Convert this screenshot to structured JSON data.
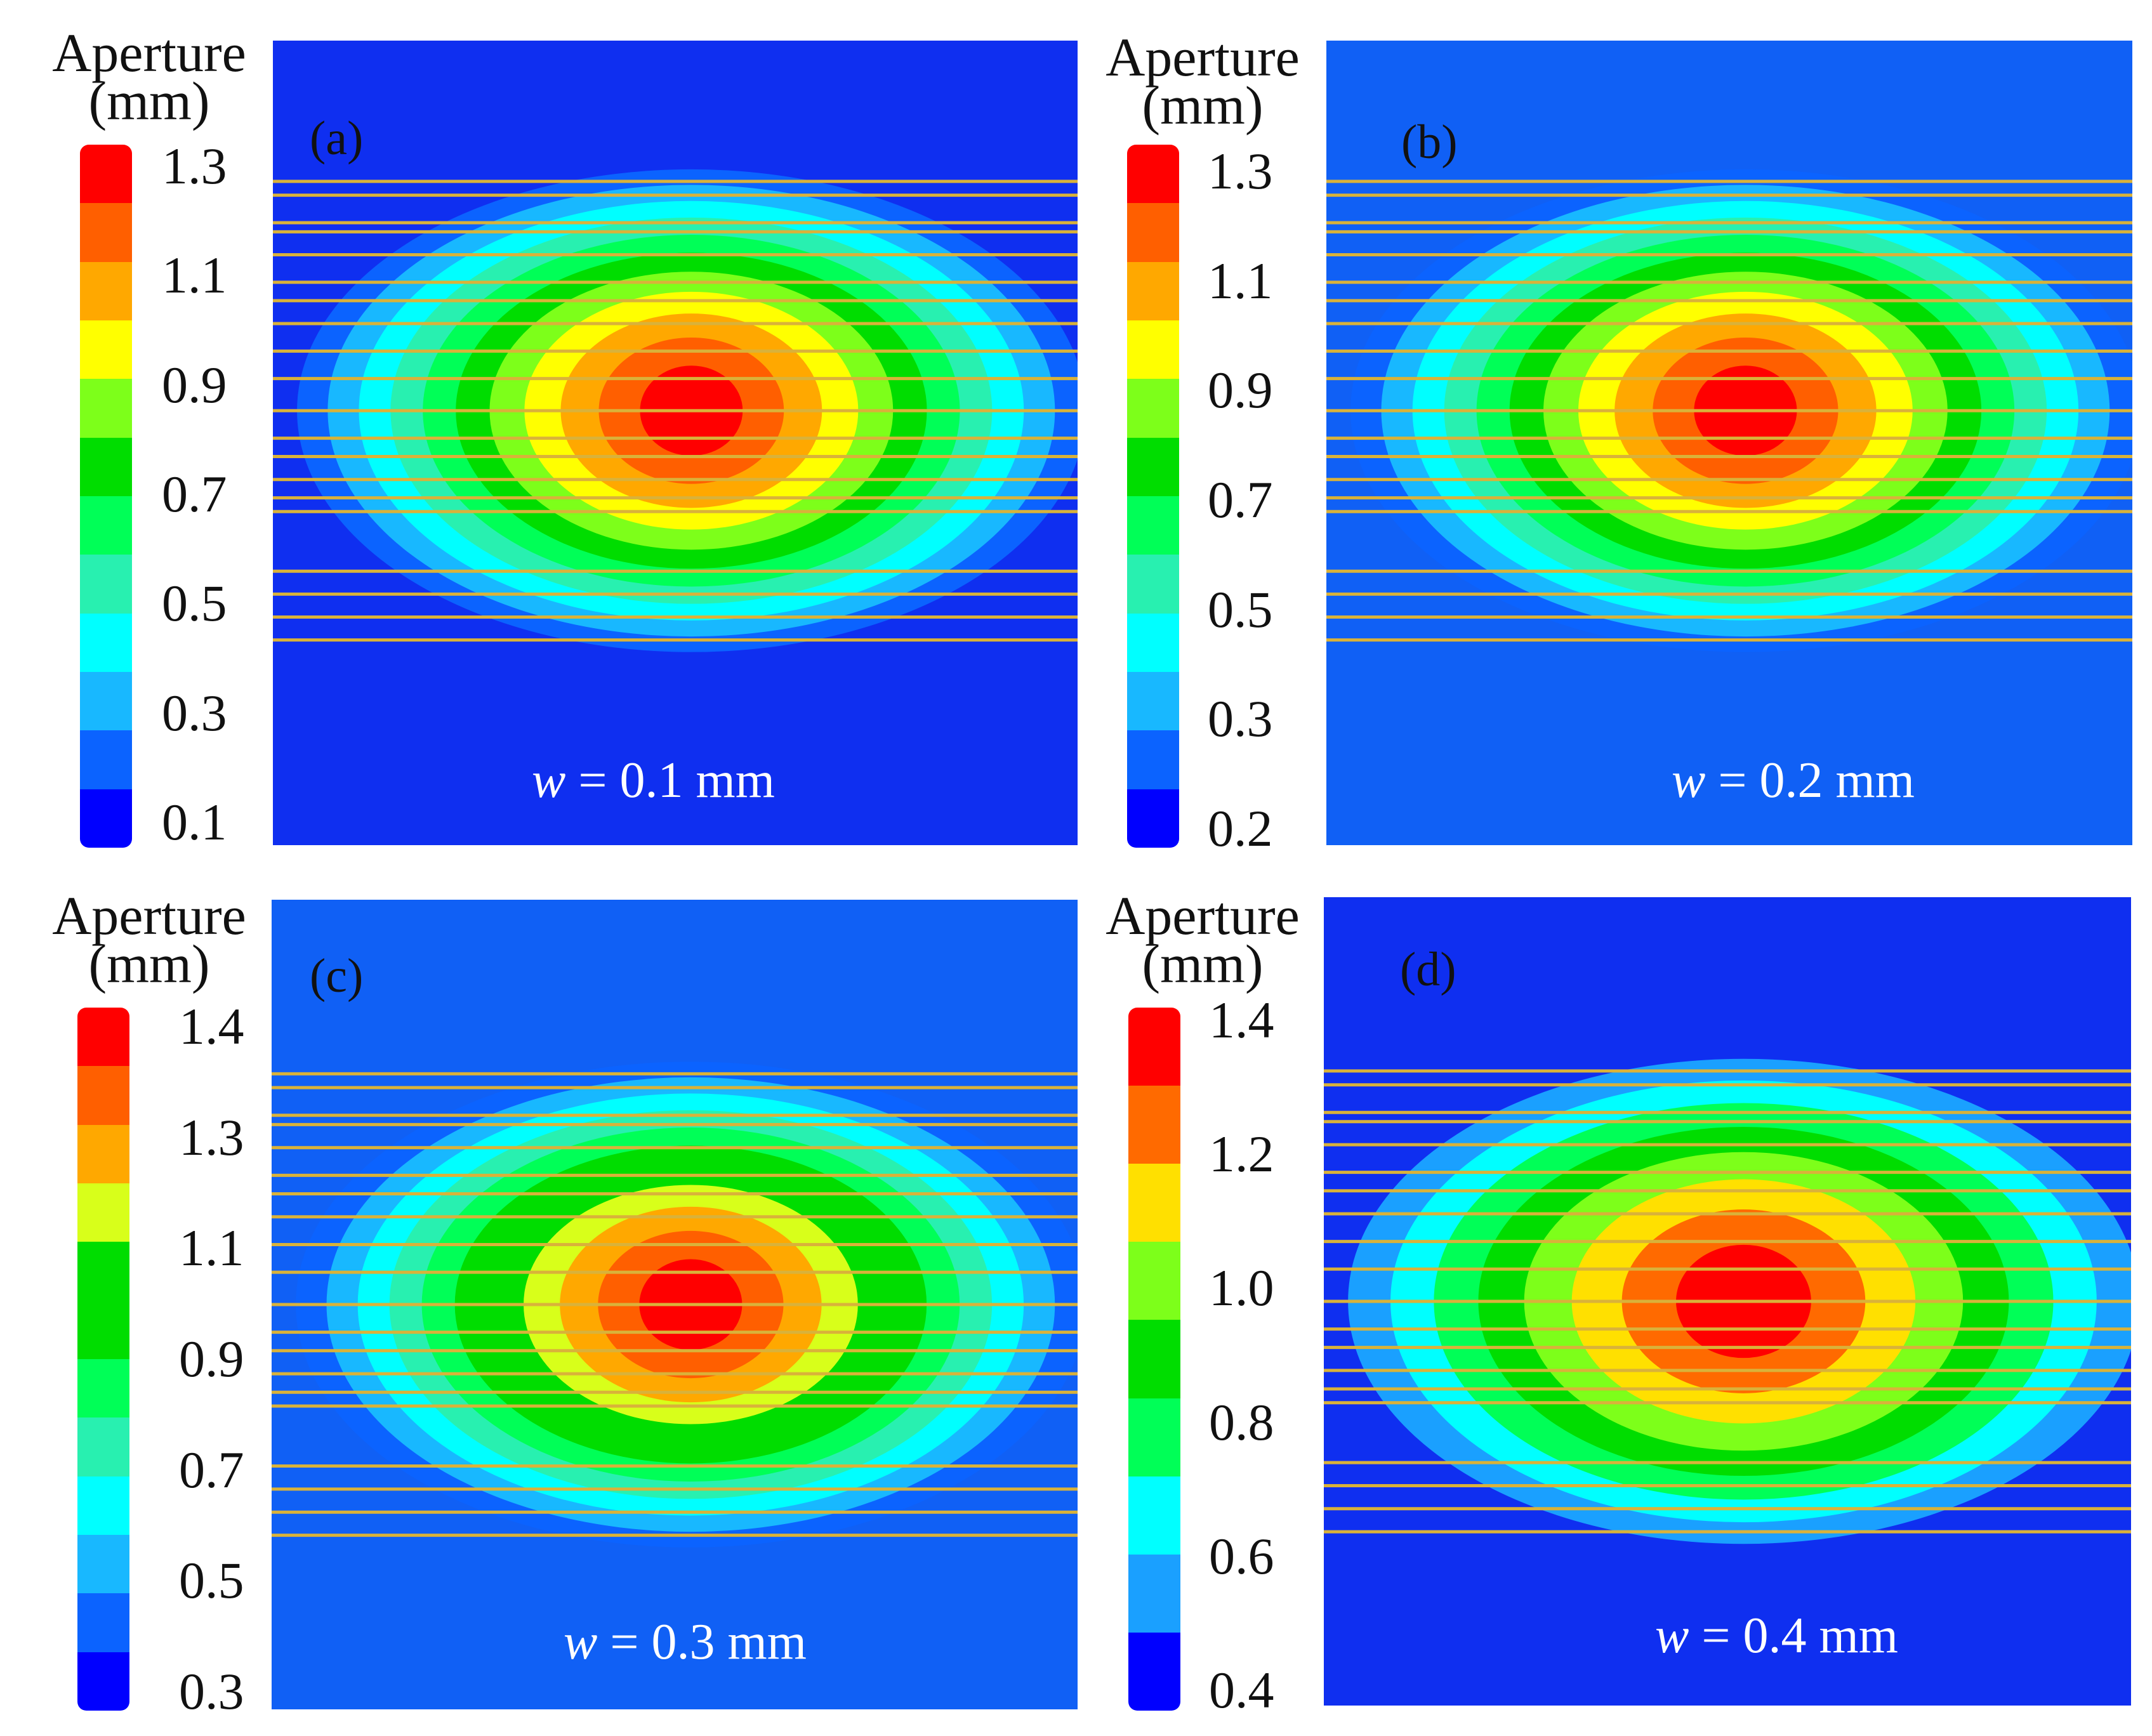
{
  "figure": {
    "colorbar_title_line1": "Aperture",
    "colorbar_title_line2": "(mm)",
    "background_color": "#0f3ff2",
    "fracture_line_color": "#d9b23a"
  },
  "chart_data": [
    {
      "type": "heatmap",
      "panel_label": "(a)",
      "width_symbol": "w",
      "width_text": " = 0.1 mm",
      "colorbar_ticks": [
        "1.3",
        "1.1",
        "0.9",
        "0.7",
        "0.5",
        "0.3",
        "0.1"
      ],
      "colorbar_range": [
        0.1,
        1.3
      ],
      "colorbar_levels": [
        "#ff0000",
        "#ff5f00",
        "#ffa800",
        "#ffff00",
        "#7dff1a",
        "#00dd00",
        "#00ff57",
        "#28f0b0",
        "#00ffff",
        "#18b8ff",
        "#0b63ff",
        "#0000ff"
      ],
      "background": "#0f2ff0",
      "peak_aperture_mm": 1.3
    },
    {
      "type": "heatmap",
      "panel_label": "(b)",
      "width_symbol": "w",
      "width_text": " = 0.2 mm",
      "colorbar_ticks": [
        "1.3",
        "1.1",
        "0.9",
        "0.7",
        "0.5",
        "0.3",
        "0.2"
      ],
      "colorbar_range": [
        0.2,
        1.3
      ],
      "colorbar_levels": [
        "#ff0000",
        "#ff5f00",
        "#ffa800",
        "#ffff00",
        "#7dff1a",
        "#00dd00",
        "#00ff57",
        "#28f0b0",
        "#00ffff",
        "#18b8ff",
        "#0b63ff",
        "#0000ff"
      ],
      "background": "#1060f5",
      "peak_aperture_mm": 1.3
    },
    {
      "type": "heatmap",
      "panel_label": "(c)",
      "width_symbol": "w",
      "width_text": " = 0.3 mm",
      "colorbar_ticks": [
        "1.4",
        "1.3",
        "1.1",
        "0.9",
        "0.7",
        "0.5",
        "0.3"
      ],
      "colorbar_range": [
        0.3,
        1.4
      ],
      "colorbar_levels": [
        "#ff0000",
        "#ff5f00",
        "#ffa800",
        "#d8ff1a",
        "#00dd00",
        "#00dd00",
        "#00ff57",
        "#28f0b0",
        "#00ffff",
        "#18b8ff",
        "#0b63ff",
        "#0000ff"
      ],
      "background": "#1060f5",
      "peak_aperture_mm": 1.4
    },
    {
      "type": "heatmap",
      "panel_label": "(d)",
      "width_symbol": "w",
      "width_text": " = 0.4 mm",
      "colorbar_ticks": [
        "1.4",
        "1.2",
        "1.0",
        "0.8",
        "0.6",
        "0.4"
      ],
      "colorbar_range": [
        0.4,
        1.4
      ],
      "colorbar_levels": [
        "#ff0000",
        "#ff6a00",
        "#ffe000",
        "#7dff1a",
        "#00dd00",
        "#00ff57",
        "#00ffff",
        "#1aa0ff",
        "#0000ff"
      ],
      "background": "#0f2ff0",
      "peak_aperture_mm": 1.4
    }
  ]
}
